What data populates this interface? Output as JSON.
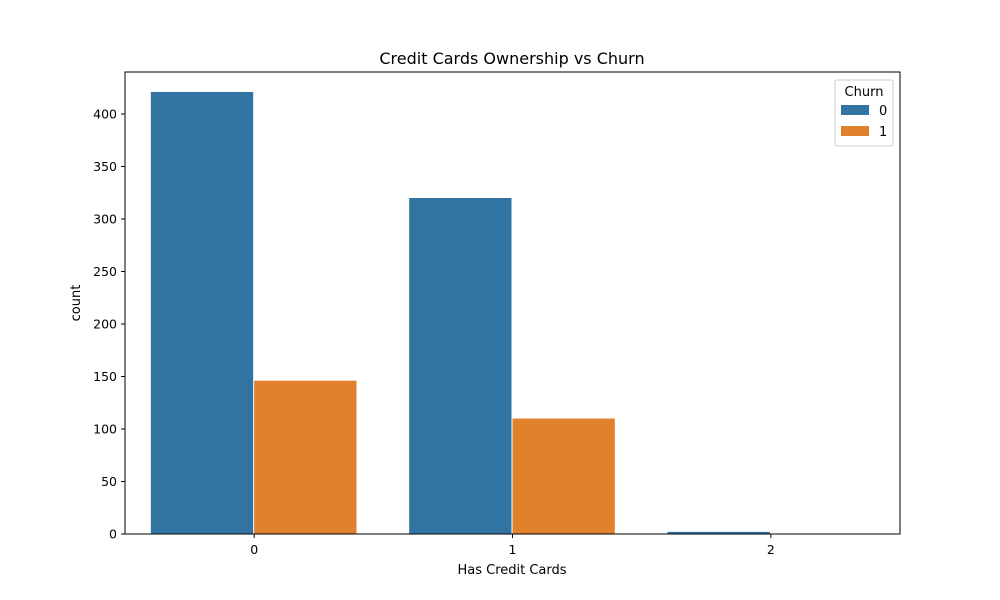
{
  "chart_data": {
    "type": "bar",
    "title": "Credit Cards Ownership vs Churn",
    "xlabel": "Has Credit Cards",
    "ylabel": "count",
    "categories": [
      "0",
      "1",
      "2"
    ],
    "series": [
      {
        "name": "0",
        "values": [
          421,
          320,
          2
        ],
        "color": "#3274a1"
      },
      {
        "name": "1",
        "values": [
          146,
          110,
          0
        ],
        "color": "#e1812c"
      }
    ],
    "ylim": [
      0,
      440
    ],
    "yticks": [
      0,
      50,
      100,
      150,
      200,
      250,
      300,
      350,
      400
    ],
    "grid": false,
    "legend": {
      "title": "Churn",
      "placement": "top-right"
    }
  }
}
